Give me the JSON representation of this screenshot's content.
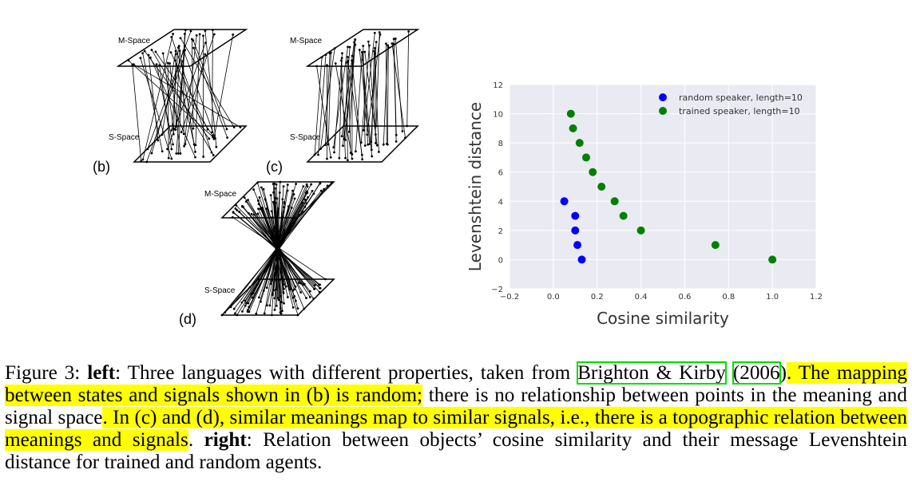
{
  "left_figure": {
    "panels": [
      {
        "label": "(b)",
        "top_space": "M-Space",
        "bottom_space": "S-Space",
        "kind": "random"
      },
      {
        "label": "(c)",
        "top_space": "M-Space",
        "bottom_space": "S-Space",
        "kind": "topographic"
      },
      {
        "label": "(d)",
        "top_space": "M-Space",
        "bottom_space": "S-Space",
        "kind": "topographic-dense"
      }
    ]
  },
  "chart_data": {
    "type": "scatter",
    "xlabel": "Cosine similarity",
    "ylabel": "Levenshtein distance",
    "xlim": [
      -0.2,
      1.2
    ],
    "ylim": [
      -2,
      12
    ],
    "xticks": [
      "−0.2",
      "0.0",
      "0.2",
      "0.4",
      "0.6",
      "0.8",
      "1.0",
      "1.2"
    ],
    "yticks": [
      "−2",
      "0",
      "2",
      "4",
      "6",
      "8",
      "10",
      "12"
    ],
    "grid": true,
    "legend_position": "top-right",
    "series": [
      {
        "name": "random speaker, length=10",
        "color": "#0000ff",
        "x": [
          0.05,
          0.1,
          0.1,
          0.11,
          0.13
        ],
        "y": [
          4,
          3,
          2,
          1,
          0
        ]
      },
      {
        "name": "trained speaker, length=10",
        "color": "#008000",
        "x": [
          0.08,
          0.09,
          0.12,
          0.15,
          0.18,
          0.22,
          0.28,
          0.32,
          0.4,
          0.74,
          1.0
        ],
        "y": [
          10,
          9,
          8,
          7,
          6,
          5,
          4,
          3,
          2,
          1,
          0
        ]
      }
    ]
  },
  "caption": {
    "figure_label": "Figure 3: ",
    "left_bold": "left",
    "part1": ": Three languages with different properties, taken from ",
    "cite_authors": "Brighton & Kirby",
    "cite_space": " ",
    "cite_year": "(2006",
    "cite_close": ")",
    "hl1": ". The mapping between states and signals shown in (b) is random;",
    "part2": " there is no relationship between points in the meaning and signal space",
    "hl2": ". In (c) and (d), similar meanings map to similar signals, i.e., there is a topographic relation between meanings and signals",
    "part3": ".  ",
    "right_bold": "right",
    "part4": ": Relation between objects’ cosine similarity and their message Levenshtein distance for trained and random agents."
  }
}
